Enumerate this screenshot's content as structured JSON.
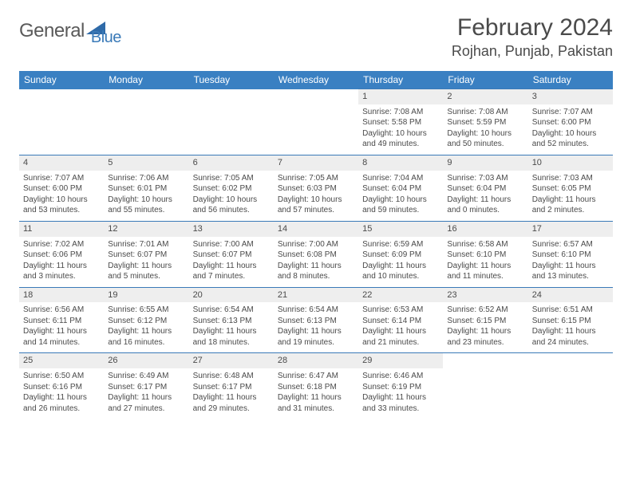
{
  "logo": {
    "t1": "General",
    "t2": "Blue"
  },
  "title": "February 2024",
  "location": "Rojhan, Punjab, Pakistan",
  "colors": {
    "header_bg": "#3a80c2",
    "header_text": "#ffffff",
    "border": "#3a7ab8",
    "daynum_bg": "#eeeeee",
    "text": "#4a4a4a",
    "page_bg": "#ffffff"
  },
  "typography": {
    "title_fontsize": 30,
    "location_fontsize": 18,
    "dayhead_fontsize": 12,
    "cell_fontsize": 10
  },
  "dayNames": [
    "Sunday",
    "Monday",
    "Tuesday",
    "Wednesday",
    "Thursday",
    "Friday",
    "Saturday"
  ],
  "weeks": [
    [
      null,
      null,
      null,
      null,
      {
        "n": "1",
        "sr": "Sunrise: 7:08 AM",
        "ss": "Sunset: 5:58 PM",
        "d1": "Daylight: 10 hours",
        "d2": "and 49 minutes."
      },
      {
        "n": "2",
        "sr": "Sunrise: 7:08 AM",
        "ss": "Sunset: 5:59 PM",
        "d1": "Daylight: 10 hours",
        "d2": "and 50 minutes."
      },
      {
        "n": "3",
        "sr": "Sunrise: 7:07 AM",
        "ss": "Sunset: 6:00 PM",
        "d1": "Daylight: 10 hours",
        "d2": "and 52 minutes."
      }
    ],
    [
      {
        "n": "4",
        "sr": "Sunrise: 7:07 AM",
        "ss": "Sunset: 6:00 PM",
        "d1": "Daylight: 10 hours",
        "d2": "and 53 minutes."
      },
      {
        "n": "5",
        "sr": "Sunrise: 7:06 AM",
        "ss": "Sunset: 6:01 PM",
        "d1": "Daylight: 10 hours",
        "d2": "and 55 minutes."
      },
      {
        "n": "6",
        "sr": "Sunrise: 7:05 AM",
        "ss": "Sunset: 6:02 PM",
        "d1": "Daylight: 10 hours",
        "d2": "and 56 minutes."
      },
      {
        "n": "7",
        "sr": "Sunrise: 7:05 AM",
        "ss": "Sunset: 6:03 PM",
        "d1": "Daylight: 10 hours",
        "d2": "and 57 minutes."
      },
      {
        "n": "8",
        "sr": "Sunrise: 7:04 AM",
        "ss": "Sunset: 6:04 PM",
        "d1": "Daylight: 10 hours",
        "d2": "and 59 minutes."
      },
      {
        "n": "9",
        "sr": "Sunrise: 7:03 AM",
        "ss": "Sunset: 6:04 PM",
        "d1": "Daylight: 11 hours",
        "d2": "and 0 minutes."
      },
      {
        "n": "10",
        "sr": "Sunrise: 7:03 AM",
        "ss": "Sunset: 6:05 PM",
        "d1": "Daylight: 11 hours",
        "d2": "and 2 minutes."
      }
    ],
    [
      {
        "n": "11",
        "sr": "Sunrise: 7:02 AM",
        "ss": "Sunset: 6:06 PM",
        "d1": "Daylight: 11 hours",
        "d2": "and 3 minutes."
      },
      {
        "n": "12",
        "sr": "Sunrise: 7:01 AM",
        "ss": "Sunset: 6:07 PM",
        "d1": "Daylight: 11 hours",
        "d2": "and 5 minutes."
      },
      {
        "n": "13",
        "sr": "Sunrise: 7:00 AM",
        "ss": "Sunset: 6:07 PM",
        "d1": "Daylight: 11 hours",
        "d2": "and 7 minutes."
      },
      {
        "n": "14",
        "sr": "Sunrise: 7:00 AM",
        "ss": "Sunset: 6:08 PM",
        "d1": "Daylight: 11 hours",
        "d2": "and 8 minutes."
      },
      {
        "n": "15",
        "sr": "Sunrise: 6:59 AM",
        "ss": "Sunset: 6:09 PM",
        "d1": "Daylight: 11 hours",
        "d2": "and 10 minutes."
      },
      {
        "n": "16",
        "sr": "Sunrise: 6:58 AM",
        "ss": "Sunset: 6:10 PM",
        "d1": "Daylight: 11 hours",
        "d2": "and 11 minutes."
      },
      {
        "n": "17",
        "sr": "Sunrise: 6:57 AM",
        "ss": "Sunset: 6:10 PM",
        "d1": "Daylight: 11 hours",
        "d2": "and 13 minutes."
      }
    ],
    [
      {
        "n": "18",
        "sr": "Sunrise: 6:56 AM",
        "ss": "Sunset: 6:11 PM",
        "d1": "Daylight: 11 hours",
        "d2": "and 14 minutes."
      },
      {
        "n": "19",
        "sr": "Sunrise: 6:55 AM",
        "ss": "Sunset: 6:12 PM",
        "d1": "Daylight: 11 hours",
        "d2": "and 16 minutes."
      },
      {
        "n": "20",
        "sr": "Sunrise: 6:54 AM",
        "ss": "Sunset: 6:13 PM",
        "d1": "Daylight: 11 hours",
        "d2": "and 18 minutes."
      },
      {
        "n": "21",
        "sr": "Sunrise: 6:54 AM",
        "ss": "Sunset: 6:13 PM",
        "d1": "Daylight: 11 hours",
        "d2": "and 19 minutes."
      },
      {
        "n": "22",
        "sr": "Sunrise: 6:53 AM",
        "ss": "Sunset: 6:14 PM",
        "d1": "Daylight: 11 hours",
        "d2": "and 21 minutes."
      },
      {
        "n": "23",
        "sr": "Sunrise: 6:52 AM",
        "ss": "Sunset: 6:15 PM",
        "d1": "Daylight: 11 hours",
        "d2": "and 23 minutes."
      },
      {
        "n": "24",
        "sr": "Sunrise: 6:51 AM",
        "ss": "Sunset: 6:15 PM",
        "d1": "Daylight: 11 hours",
        "d2": "and 24 minutes."
      }
    ],
    [
      {
        "n": "25",
        "sr": "Sunrise: 6:50 AM",
        "ss": "Sunset: 6:16 PM",
        "d1": "Daylight: 11 hours",
        "d2": "and 26 minutes."
      },
      {
        "n": "26",
        "sr": "Sunrise: 6:49 AM",
        "ss": "Sunset: 6:17 PM",
        "d1": "Daylight: 11 hours",
        "d2": "and 27 minutes."
      },
      {
        "n": "27",
        "sr": "Sunrise: 6:48 AM",
        "ss": "Sunset: 6:17 PM",
        "d1": "Daylight: 11 hours",
        "d2": "and 29 minutes."
      },
      {
        "n": "28",
        "sr": "Sunrise: 6:47 AM",
        "ss": "Sunset: 6:18 PM",
        "d1": "Daylight: 11 hours",
        "d2": "and 31 minutes."
      },
      {
        "n": "29",
        "sr": "Sunrise: 6:46 AM",
        "ss": "Sunset: 6:19 PM",
        "d1": "Daylight: 11 hours",
        "d2": "and 33 minutes."
      },
      null,
      null
    ]
  ]
}
